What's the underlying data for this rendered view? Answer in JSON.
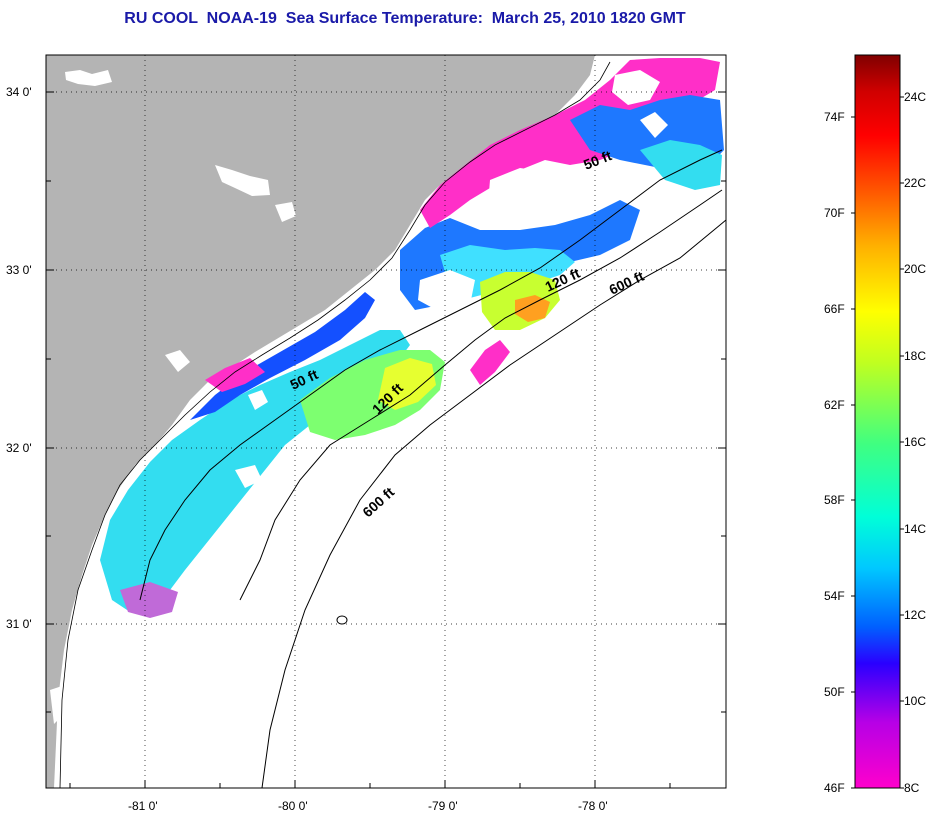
{
  "title": "RU COOL  NOAA-19  Sea Surface Temperature:  March 25, 2010 1820 GMT",
  "map": {
    "x_ticks": [
      "-81 0'",
      "-80 0'",
      "-79 0'",
      "-78 0'"
    ],
    "y_ticks": [
      "34 0'",
      "33 0'",
      "32 0'",
      "31 0'"
    ],
    "contours": [
      {
        "label": "50 ft"
      },
      {
        "label": "50 ft"
      },
      {
        "label": "120 ft"
      },
      {
        "label": "120 ft"
      },
      {
        "label": "600 ft"
      },
      {
        "label": "600 ft"
      }
    ],
    "colors": {
      "land": "#b4b4b4",
      "no_data": "#ffffff",
      "grid": "#000000"
    }
  },
  "colorbar": {
    "fahrenheit_labels": [
      "74F",
      "70F",
      "66F",
      "62F",
      "58F",
      "54F",
      "50F",
      "46F"
    ],
    "celsius_labels": [
      "24C",
      "22C",
      "20C",
      "18C",
      "16C",
      "14C",
      "12C",
      "10C",
      "8C"
    ],
    "stops": [
      "#ff00cc",
      "#b600e6",
      "#2a00ff",
      "#0060ff",
      "#00c8ff",
      "#00ffd8",
      "#40ff80",
      "#c0ff20",
      "#ffff00",
      "#ffb000",
      "#ff5000",
      "#ff0000",
      "#d00000",
      "#800000"
    ]
  }
}
